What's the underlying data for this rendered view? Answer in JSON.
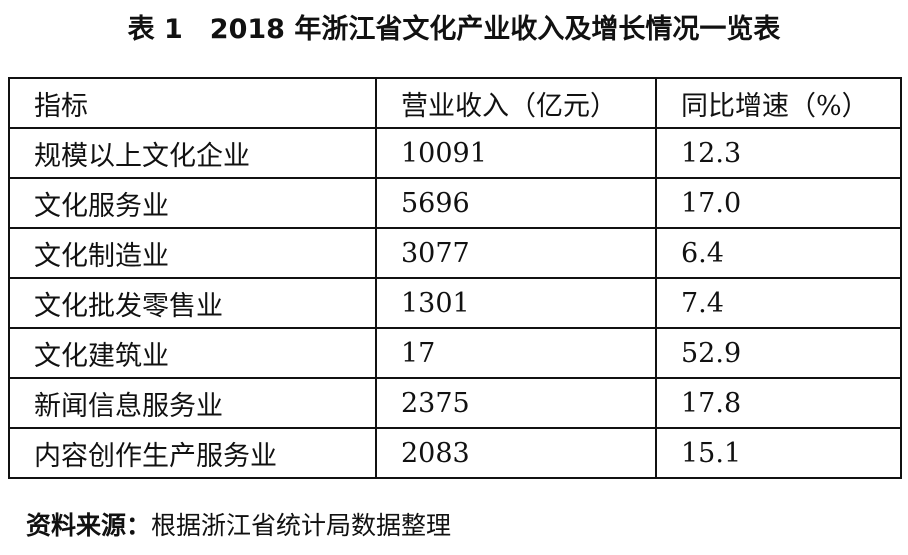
{
  "title": "表 1　2018 年浙江省文化产业收入及增长情况一览表",
  "table": {
    "header": [
      "指标",
      "营业收入（亿元）",
      "同比增速（%）"
    ],
    "rows": [
      [
        "规模以上文化企业",
        "10091",
        "12.3"
      ],
      [
        "文化服务业",
        "5696",
        "17.0"
      ],
      [
        "文化制造业",
        "3077",
        "6.4"
      ],
      [
        "文化批发零售业",
        "1301",
        "7.4"
      ],
      [
        "文化建筑业",
        "17",
        "52.9"
      ],
      [
        "新闻信息服务业",
        "2375",
        "17.8"
      ],
      [
        "内容创作生产服务业",
        "2083",
        "15.1"
      ]
    ]
  },
  "source": {
    "label": "资料来源：",
    "text": "根据浙江省统计局数据整理"
  }
}
